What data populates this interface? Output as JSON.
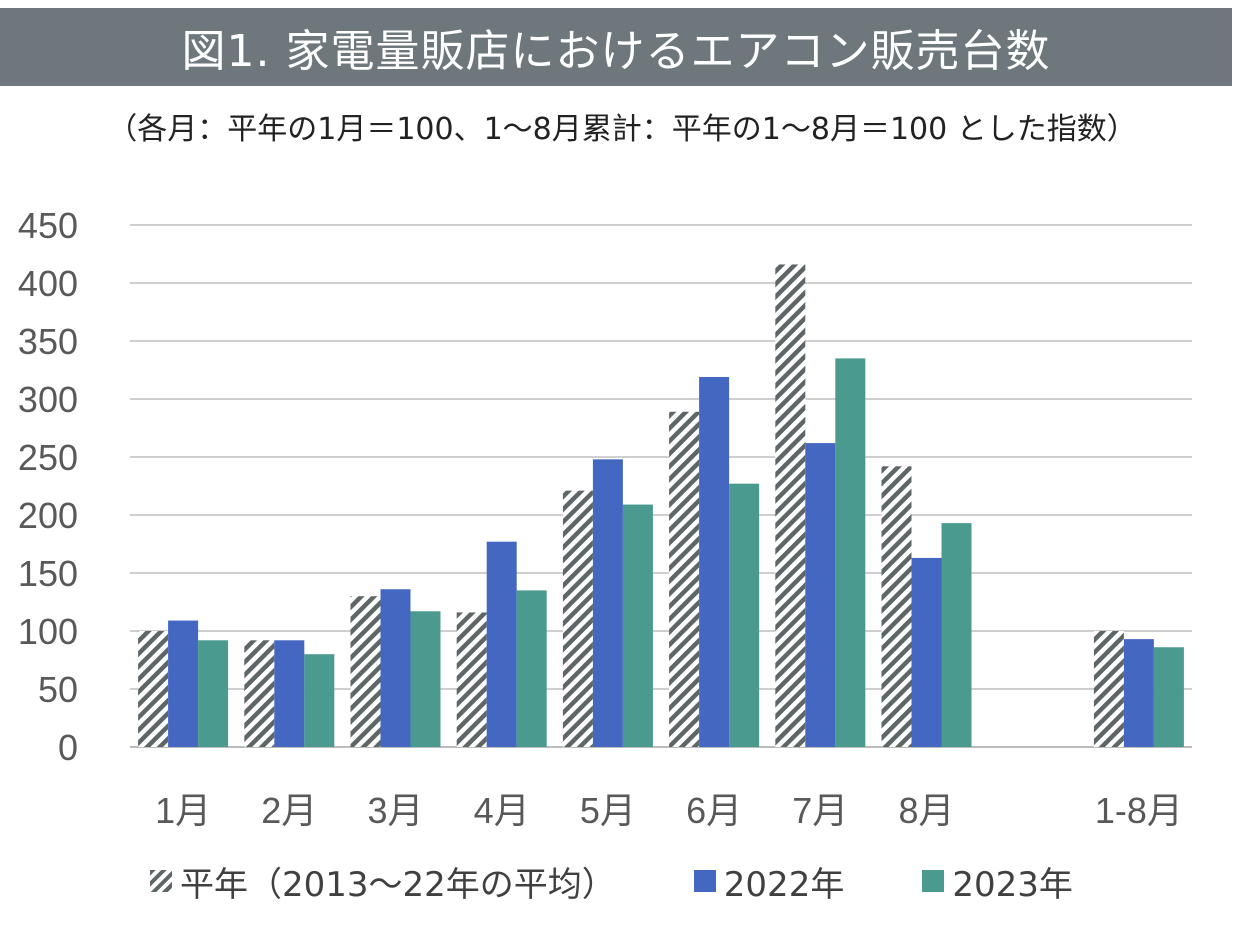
{
  "title": "図1.  家電量販店におけるエアコン販売台数",
  "subtitle": "（各月：平年の1月＝100、1～8月累計：平年の1～8月＝100 とした指数）",
  "colors": {
    "header_bg": "#6d777c",
    "hatch": "#5f6668",
    "s2022": "#4468c1",
    "s2023": "#4b9a8f",
    "grid": "#bfbfbf"
  },
  "chart_data": {
    "type": "bar",
    "categories": [
      "1月",
      "2月",
      "3月",
      "4月",
      "5月",
      "6月",
      "7月",
      "8月",
      "",
      "1-8月"
    ],
    "series": [
      {
        "name": "平年（2013～22年の平均）",
        "pattern": "hatch",
        "values": [
          100,
          92,
          130,
          116,
          221,
          289,
          416,
          242,
          null,
          100
        ]
      },
      {
        "name": "2022年",
        "values": [
          109,
          92,
          136,
          177,
          248,
          319,
          262,
          163,
          null,
          93
        ]
      },
      {
        "name": "2023年",
        "values": [
          92,
          80,
          117,
          135,
          209,
          227,
          335,
          193,
          null,
          86
        ]
      }
    ],
    "ylim": [
      0,
      450
    ],
    "yticks": [
      0,
      50,
      100,
      150,
      200,
      250,
      300,
      350,
      400,
      450
    ],
    "grid": true,
    "legend_position": "bottom"
  }
}
